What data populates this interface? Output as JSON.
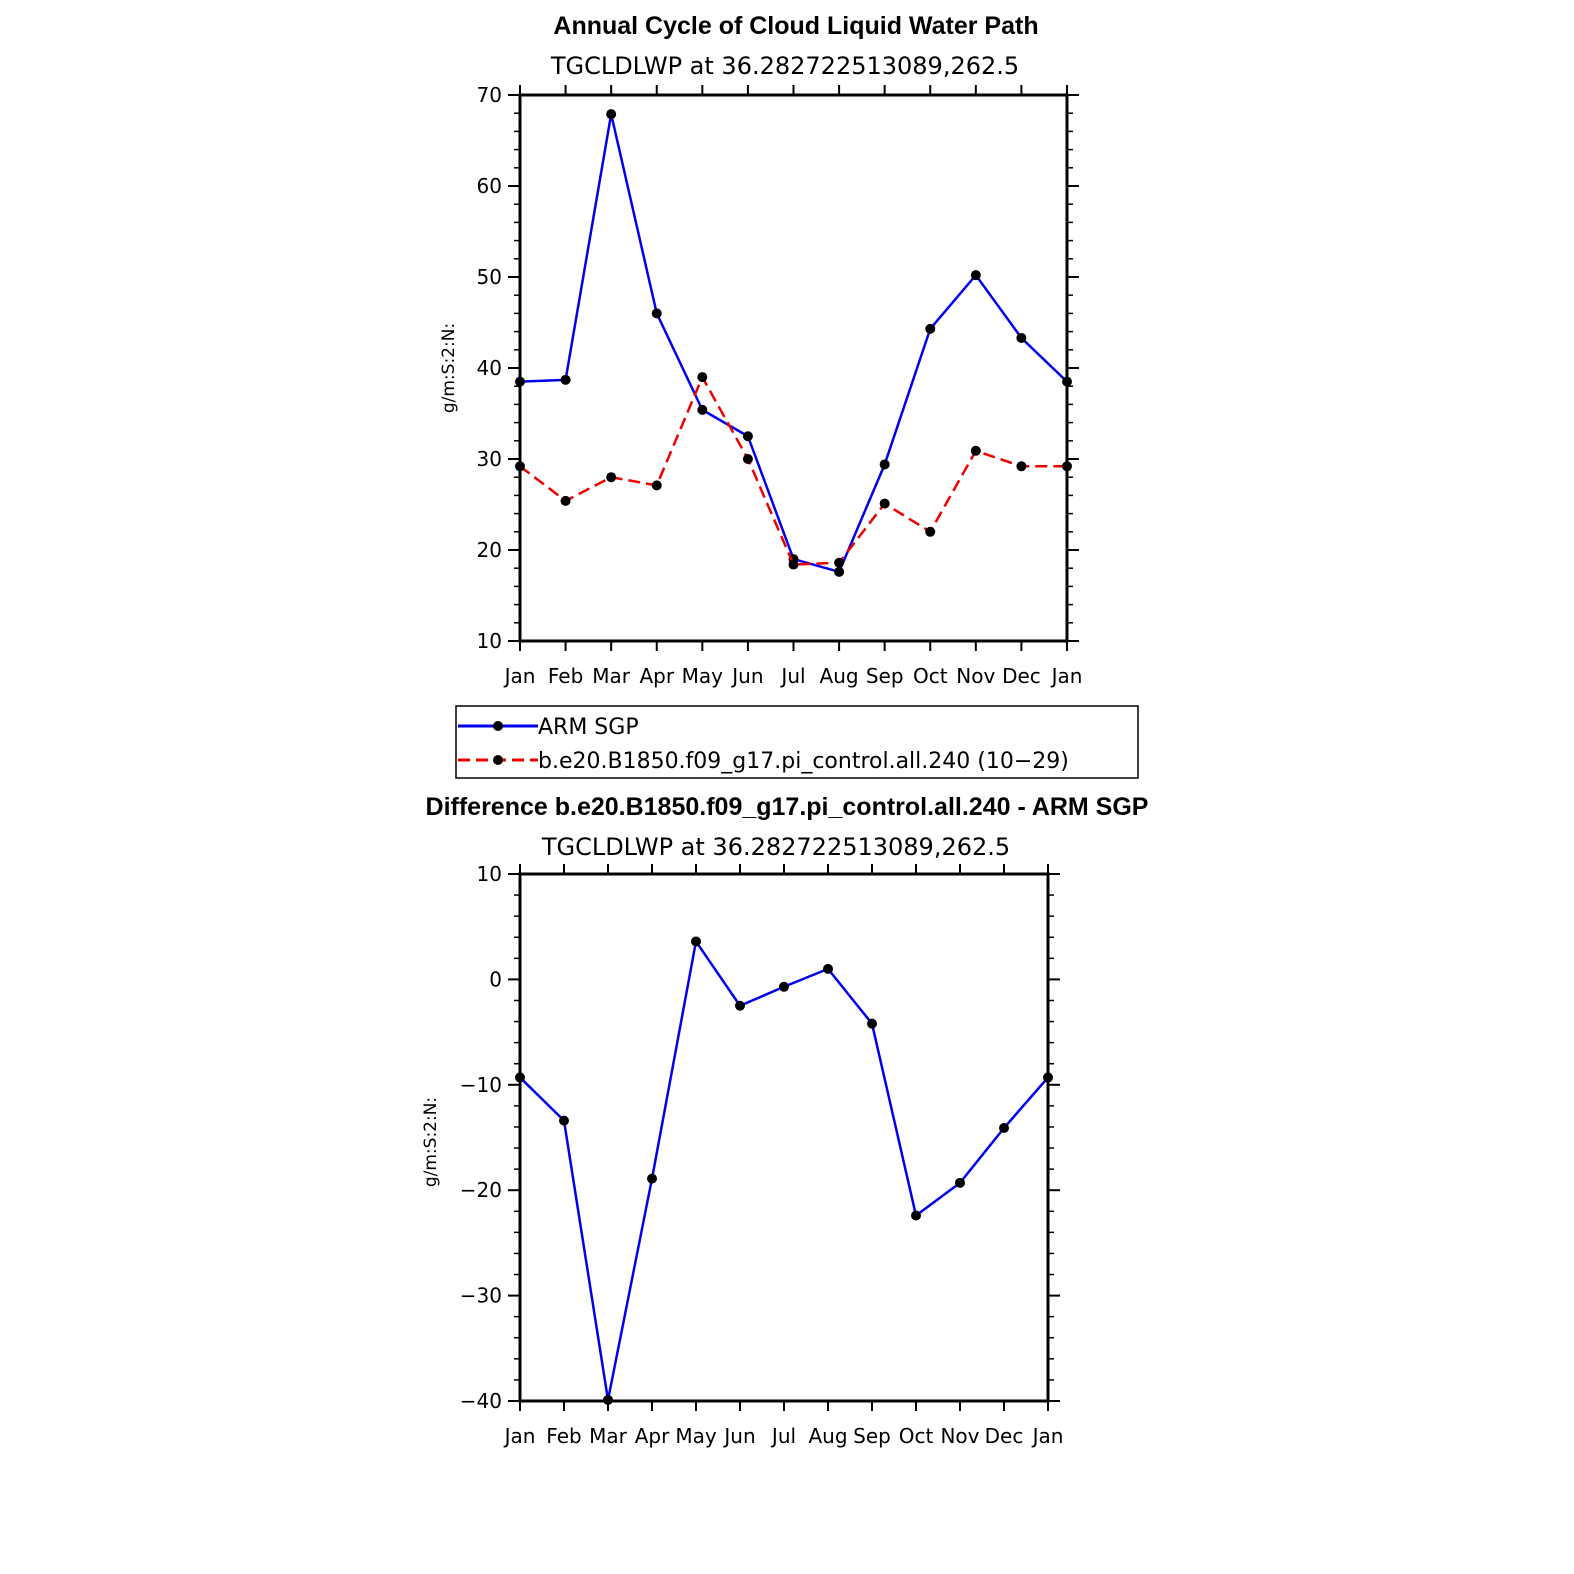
{
  "chart_data": [
    {
      "type": "line",
      "title": "Annual Cycle of Cloud Liquid Water Path",
      "subtitle": "TGCLDLWP at 36.282722513089,262.5",
      "ylabel": "g/m:S:2:N:",
      "xlabel": "",
      "categories": [
        "Jan",
        "Feb",
        "Mar",
        "Apr",
        "May",
        "Jun",
        "Jul",
        "Aug",
        "Sep",
        "Oct",
        "Nov",
        "Dec",
        "Jan"
      ],
      "ylim": [
        10,
        70
      ],
      "yticks": [
        10,
        20,
        30,
        40,
        50,
        60,
        70
      ],
      "series": [
        {
          "name": "ARM SGP",
          "color": "#0000ee",
          "dash": "solid",
          "values": [
            38.5,
            38.7,
            67.9,
            46.0,
            35.4,
            32.5,
            19.0,
            17.6,
            29.4,
            44.3,
            50.2,
            43.3,
            38.5
          ]
        },
        {
          "name": "b.e20.B1850.f09_g17.pi_control.all.240 (10−29)",
          "color": "#ee0000",
          "dash": "dashed",
          "values": [
            29.2,
            25.4,
            28.0,
            27.1,
            39.0,
            30.0,
            18.4,
            18.6,
            25.1,
            22.0,
            30.9,
            29.2,
            29.2
          ]
        }
      ],
      "legend_position": "below"
    },
    {
      "type": "line",
      "title": "Difference b.e20.B1850.f09_g17.pi_control.all.240 - ARM SGP",
      "subtitle": "TGCLDLWP at 36.282722513089,262.5",
      "ylabel": "g/m:S:2:N:",
      "xlabel": "",
      "categories": [
        "Jan",
        "Feb",
        "Mar",
        "Apr",
        "May",
        "Jun",
        "Jul",
        "Aug",
        "Sep",
        "Oct",
        "Nov",
        "Dec",
        "Jan"
      ],
      "ylim": [
        -40,
        10
      ],
      "yticks": [
        -40,
        -30,
        -20,
        -10,
        0,
        10
      ],
      "ytick_labels": [
        "−40",
        "−30",
        "−20",
        "−10",
        "0",
        "10"
      ],
      "series": [
        {
          "color": "#0000ee",
          "dash": "solid",
          "values": [
            -9.3,
            -13.4,
            -39.9,
            -18.9,
            3.6,
            -2.5,
            -0.7,
            1.0,
            -4.2,
            -22.4,
            -19.3,
            -14.1,
            -9.3
          ]
        }
      ]
    }
  ]
}
